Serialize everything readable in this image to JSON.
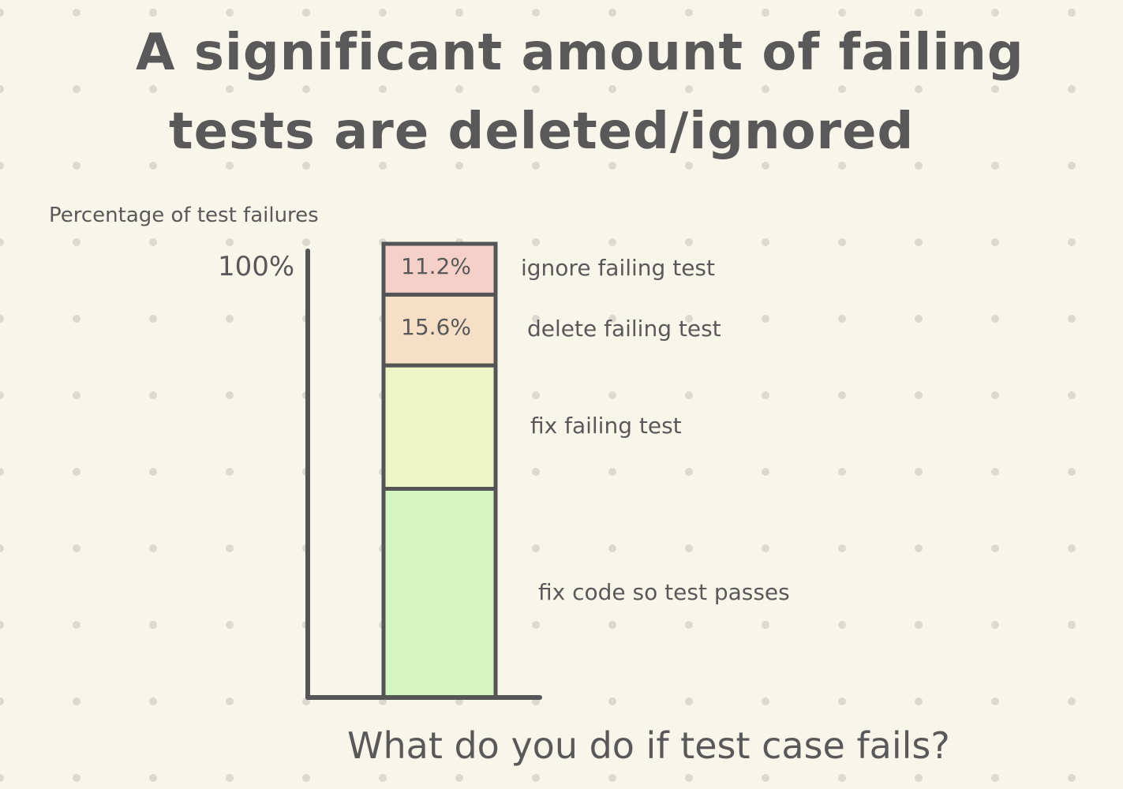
{
  "chart_data": {
    "type": "bar",
    "stacked": true,
    "title": [
      "A significant amount of failing",
      "tests are deleted/ignored"
    ],
    "xlabel": "What do you do if test case fails?",
    "ylabel": "Percentage of test failures",
    "y_tick_labels": [
      "100%"
    ],
    "ylim": [
      0,
      100
    ],
    "grid": false,
    "series": [
      {
        "name": "fix code so test passes",
        "value": 46.0,
        "value_label": "",
        "color": "#d5f5c2"
      },
      {
        "name": "fix failing test",
        "value": 27.2,
        "value_label": "",
        "color": "#eef5c6"
      },
      {
        "name": "delete failing test",
        "value": 15.6,
        "value_label": "15.6%",
        "color": "#f6dfc6"
      },
      {
        "name": "ignore failing test",
        "value": 11.2,
        "value_label": "11.2%",
        "color": "#f4d0c8"
      }
    ]
  }
}
